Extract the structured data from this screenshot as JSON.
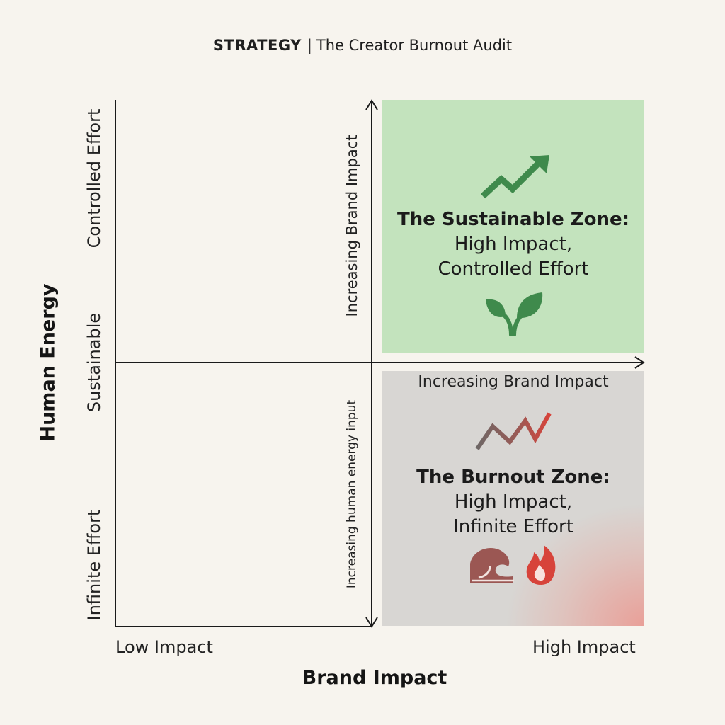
{
  "header": {
    "category": "STRATEGY",
    "separator": "|",
    "title": "The Creator Burnout Audit"
  },
  "y_axis": {
    "title": "Human Energy",
    "ticks": [
      "Controlled Effort",
      "Sustainable",
      "Infinite Effort"
    ]
  },
  "x_axis": {
    "title": "Brand Impact",
    "low_label": "Low Impact",
    "high_label": "High Impact"
  },
  "inner_axes": {
    "upper_vertical_label": "Increasing Brand Impact",
    "lower_vertical_label": "Increasing human energy input",
    "horizontal_label": "Increasing Brand Impact"
  },
  "zones": {
    "sustainable": {
      "name": "The Sustainable Zone:",
      "line1": "High Impact,",
      "line2": "Controlled Effort",
      "icons": [
        "trend-up-icon",
        "leaf-icon"
      ],
      "color": "#c3e3bd"
    },
    "burnout": {
      "name": "The Burnout Zone:",
      "line1": "High Impact,",
      "line2": "Infinite Effort",
      "icons": [
        "zigzag-trend-icon",
        "wave-icon",
        "fire-icon"
      ],
      "color": "#d8d6d3",
      "accent": "#e8928a"
    }
  },
  "colors": {
    "background": "#f7f4ee",
    "axis": "#1a1a1a",
    "green_icon": "#3f8a4c",
    "red_icon": "#d7433a"
  }
}
